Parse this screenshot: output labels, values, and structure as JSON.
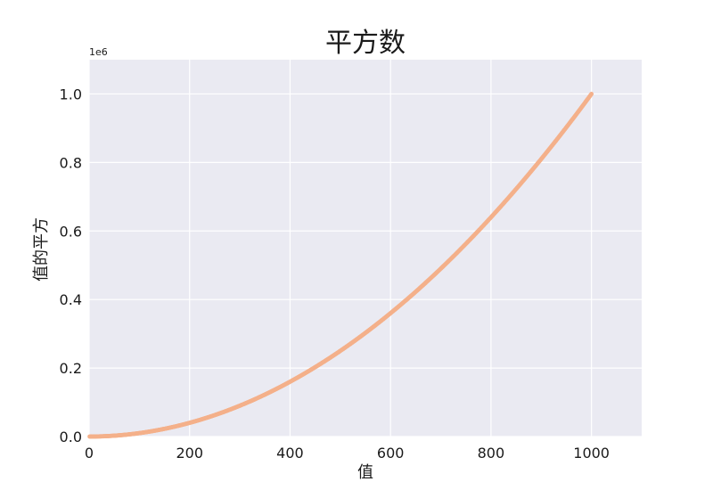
{
  "chart_data": {
    "type": "scatter",
    "title": "平方数",
    "xlabel": "值",
    "ylabel": "值的平方",
    "x_range": [
      1,
      1000
    ],
    "y_function": "x^2",
    "xlim": [
      0,
      1100
    ],
    "ylim": [
      0,
      1100000
    ],
    "xticks": [
      0,
      200,
      400,
      600,
      800,
      1000
    ],
    "xtick_labels": [
      "0",
      "200",
      "400",
      "600",
      "800",
      "1000"
    ],
    "yticks": [
      0,
      200000,
      400000,
      600000,
      800000,
      1000000
    ],
    "ytick_labels": [
      "0.0",
      "0.2",
      "0.4",
      "0.6",
      "0.8",
      "1.0"
    ],
    "y_offset_label": "1e6",
    "grid": true,
    "colors": {
      "plot_background": "#eaeaf2",
      "grid": "#ffffff",
      "marker": "#f4b08a"
    }
  }
}
